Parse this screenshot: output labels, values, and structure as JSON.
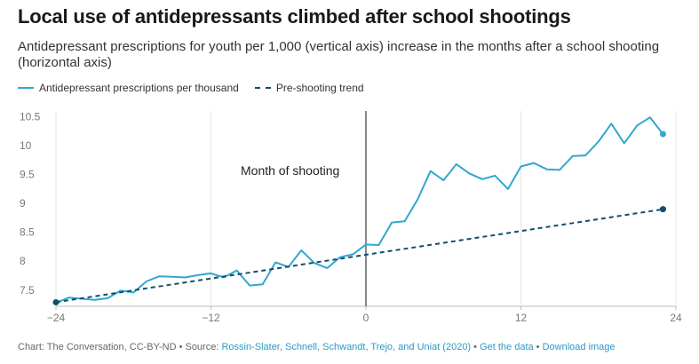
{
  "title": "Local use of antidepressants climbed after school shootings",
  "subtitle": "Antidepressant prescriptions for youth per 1,000 (vertical axis) increase in the months after a school shooting (horizontal axis)",
  "footer": {
    "credit": "Chart: The Conversation, CC-BY-ND",
    "source_label": " • Source: ",
    "source": "Rossin-Slater, Schnell, Schwandt, Trejo, and Uniat (2020)",
    "sep1": " • ",
    "get_data": "Get the data",
    "sep2": " • ",
    "download": "Download image"
  },
  "chart_data": {
    "type": "line",
    "title": "Local use of antidepressants climbed after school shootings",
    "xlabel": "",
    "ylabel": "",
    "xlim": [
      -24,
      24
    ],
    "ylim": [
      7.22,
      10.6
    ],
    "x_ticks": [
      -24,
      -12,
      0,
      12,
      24
    ],
    "x_tick_labels": [
      "−24",
      "−12",
      "0",
      "12",
      "24"
    ],
    "y_ticks": [
      7.5,
      8,
      8.5,
      9,
      9.5,
      10,
      10.5
    ],
    "y_tick_labels": [
      "7.5",
      "8",
      "8.5",
      "9",
      "9.5",
      "10",
      "10.5"
    ],
    "grid": "vertical",
    "legend_position": "top-left",
    "annotation": {
      "x": 0,
      "text": "Month of shooting"
    },
    "colors": {
      "actual": "#32a7cf",
      "trend": "#0e4f6b",
      "grid": "#e6e6e6",
      "marker_line": "#111111"
    },
    "series": [
      {
        "name": "Antidepressant prescriptions per thousand",
        "style": "solid",
        "x": [
          -24,
          -23,
          -22,
          -21,
          -20,
          -19,
          -18,
          -17,
          -16,
          -15,
          -14,
          -13,
          -12,
          -11,
          -10,
          -9,
          -8,
          -7,
          -6,
          -5,
          -4,
          -3,
          -2,
          -1,
          0,
          1,
          2,
          3,
          4,
          5,
          6,
          7,
          8,
          9,
          10,
          11,
          12,
          13,
          14,
          15,
          16,
          17,
          18,
          19,
          20,
          21,
          22,
          23
        ],
        "y": [
          7.28,
          7.37,
          7.35,
          7.33,
          7.36,
          7.49,
          7.46,
          7.65,
          7.74,
          7.73,
          7.72,
          7.76,
          7.79,
          7.72,
          7.84,
          7.58,
          7.6,
          7.98,
          7.9,
          8.19,
          7.97,
          7.88,
          8.07,
          8.12,
          8.29,
          8.28,
          8.67,
          8.69,
          9.07,
          9.56,
          9.4,
          9.68,
          9.52,
          9.42,
          9.48,
          9.25,
          9.64,
          9.7,
          9.59,
          9.58,
          9.82,
          9.83,
          10.07,
          10.38,
          10.04,
          10.35,
          10.49,
          10.2
        ]
      },
      {
        "name": "Pre-shooting trend",
        "style": "dashed",
        "x": [
          -24,
          23
        ],
        "y": [
          7.29,
          8.9
        ]
      }
    ]
  }
}
